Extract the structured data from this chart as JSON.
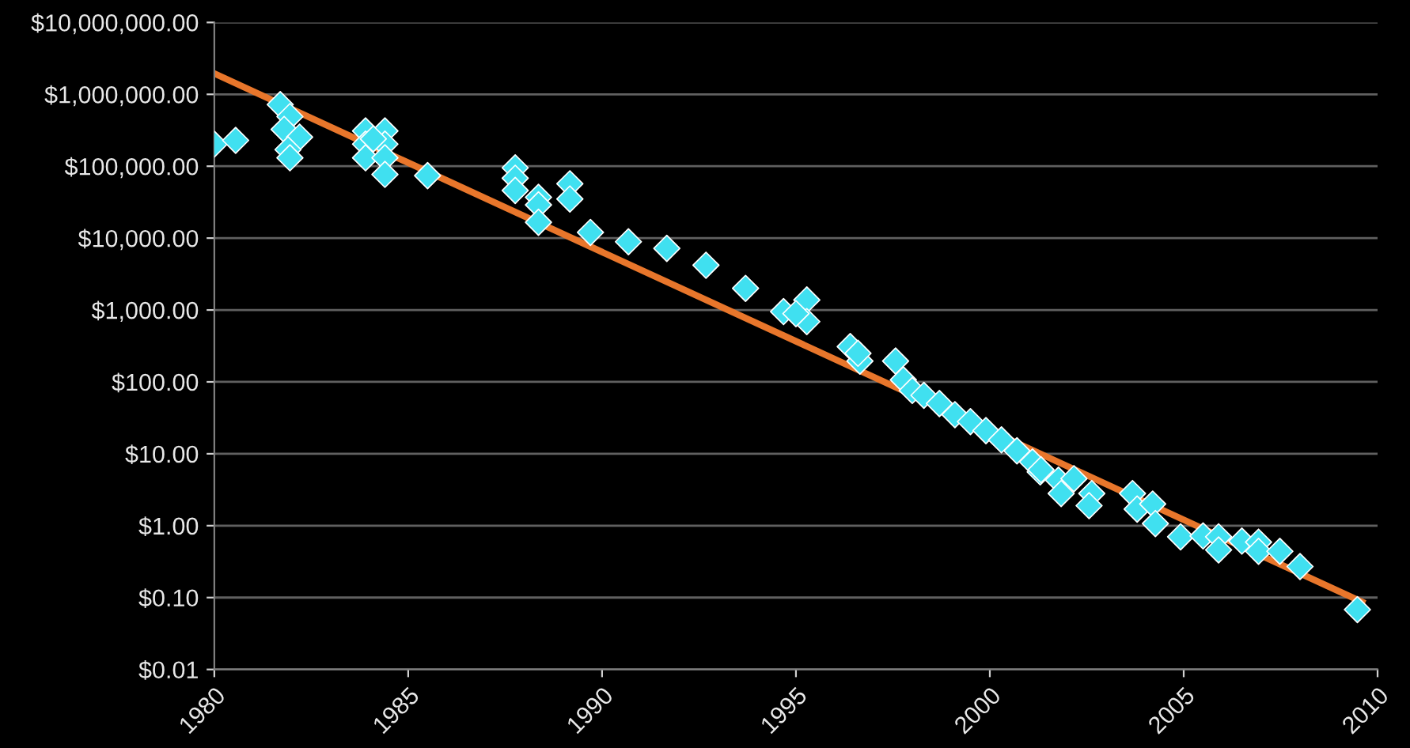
{
  "chart_data": {
    "type": "scatter",
    "xlim": [
      1980,
      2010
    ],
    "xticks": [
      1980,
      1985,
      1990,
      1995,
      2000,
      2005,
      2010
    ],
    "ylim": [
      0.01,
      10000000
    ],
    "log": true,
    "yticks": [
      {
        "value": 0.01,
        "label": "$0.01"
      },
      {
        "value": 0.1,
        "label": "$0.10"
      },
      {
        "value": 1,
        "label": "$1.00"
      },
      {
        "value": 10,
        "label": "$10.00"
      },
      {
        "value": 100,
        "label": "$100.00"
      },
      {
        "value": 1000,
        "label": "$1,000.00"
      },
      {
        "value": 10000,
        "label": "$10,000.00"
      },
      {
        "value": 100000,
        "label": "$100,000.00"
      },
      {
        "value": 1000000,
        "label": "$1,000,000.00"
      },
      {
        "value": 10000000,
        "label": "$10,000,000.00"
      }
    ],
    "grid": "y",
    "series": [
      {
        "marker": "diamond",
        "color": "#40e0f0",
        "x": [
          1980.0,
          1980.55,
          1981.7,
          1981.95,
          1981.8,
          1982.2,
          1981.9,
          1981.95,
          1983.9,
          1984.4,
          1983.9,
          1984.4,
          1983.9,
          1984.4,
          1984.4,
          1984.1,
          1985.5,
          1987.76,
          1987.76,
          1987.76,
          1988.36,
          1988.36,
          1988.36,
          1989.17,
          1989.17,
          1989.7,
          1990.68,
          1991.67,
          1992.68,
          1993.7,
          1994.68,
          1995.28,
          1995.28,
          1995.0,
          1996.4,
          1996.65,
          1996.6,
          1997.57,
          1997.77,
          1998.0,
          1998.3,
          1998.7,
          1999.1,
          1999.5,
          1999.9,
          2000.3,
          2000.7,
          2001.1,
          2001.3,
          2001.32,
          2001.77,
          2001.84,
          2002.17,
          2002.63,
          2002.56,
          2003.68,
          2003.8,
          2004.2,
          2004.27,
          2004.92,
          2005.5,
          2005.9,
          2005.9,
          2006.5,
          2006.93,
          2006.93,
          2007.48,
          2008.0,
          2009.48
        ],
        "values": [
          203000,
          229000,
          720000,
          490000,
          325000,
          254000,
          170000,
          131000,
          310000,
          310000,
          203000,
          203000,
          131000,
          131000,
          77000,
          240000,
          74000,
          95000,
          68000,
          46000,
          37000,
          29000,
          16600,
          57000,
          35000,
          12000,
          8900,
          7200,
          4200,
          2000,
          950,
          1380,
          690,
          890,
          310,
          195,
          250,
          195,
          107,
          76,
          65,
          50,
          35,
          28,
          21,
          15.6,
          11,
          7.7,
          5.6,
          6.0,
          4.3,
          2.8,
          4.5,
          2.8,
          1.9,
          2.8,
          1.7,
          2.0,
          1.07,
          0.7,
          0.72,
          0.7,
          0.46,
          0.61,
          0.59,
          0.44,
          0.44,
          0.27,
          0.068
        ]
      },
      {
        "type": "line",
        "marker": "none",
        "color": "#e8762b",
        "x": [
          1980,
          2009.6
        ],
        "values": [
          1950000,
          0.087
        ]
      }
    ]
  }
}
